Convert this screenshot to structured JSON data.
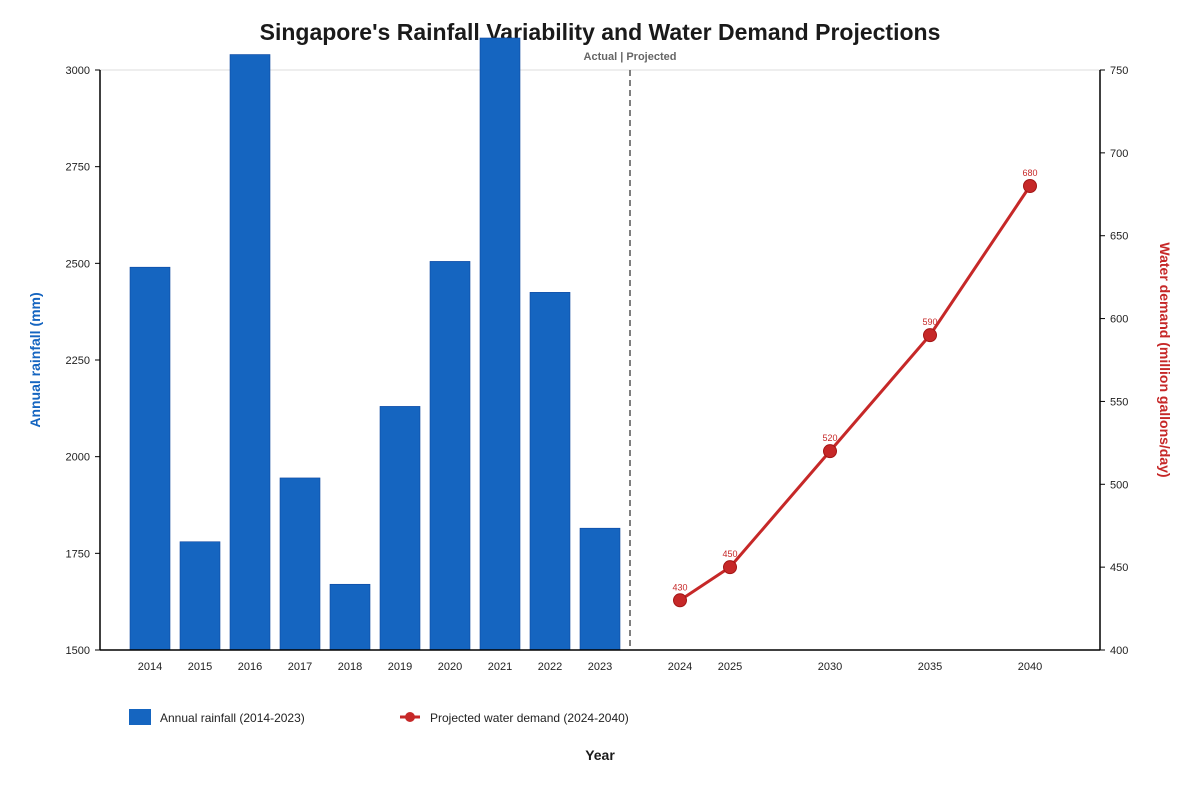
{
  "chart_data": {
    "type": "bar+line",
    "title": "Singapore's Rainfall Variability and Water Demand Projections",
    "annotation": "Actual | Projected",
    "xlabel": "Year",
    "ylabel_left": "Annual rainfall (mm)",
    "ylabel_right": "Water demand (million gallons/day)",
    "ylim_left": [
      1500,
      3000
    ],
    "ylim_right": [
      400,
      750
    ],
    "yticks_left": [
      1500,
      1750,
      2000,
      2250,
      2500,
      2750,
      3000
    ],
    "yticks_right": [
      400,
      450,
      500,
      550,
      600,
      650,
      700,
      750
    ],
    "colors": {
      "rainfall": "#1565c0",
      "demand": "#c62828",
      "divider": "#555555"
    },
    "rainfall": {
      "name": "Annual rainfall (2014-2023)",
      "categories": [
        "2014",
        "2015",
        "2016",
        "2017",
        "2018",
        "2019",
        "2020",
        "2021",
        "2022",
        "2023"
      ],
      "values": [
        2490,
        1780,
        3040,
        1945,
        1670,
        2130,
        2505,
        3095,
        2425,
        1815
      ]
    },
    "demand": {
      "name": "Projected water demand (2024-2040)",
      "x": [
        "2024",
        "2025",
        "2030",
        "2035",
        "2040"
      ],
      "values": [
        430,
        450,
        520,
        590,
        680
      ],
      "labels": [
        "430",
        "450",
        "520",
        "590",
        "680"
      ]
    },
    "legend_placement": "bottom-left",
    "grid": false
  }
}
